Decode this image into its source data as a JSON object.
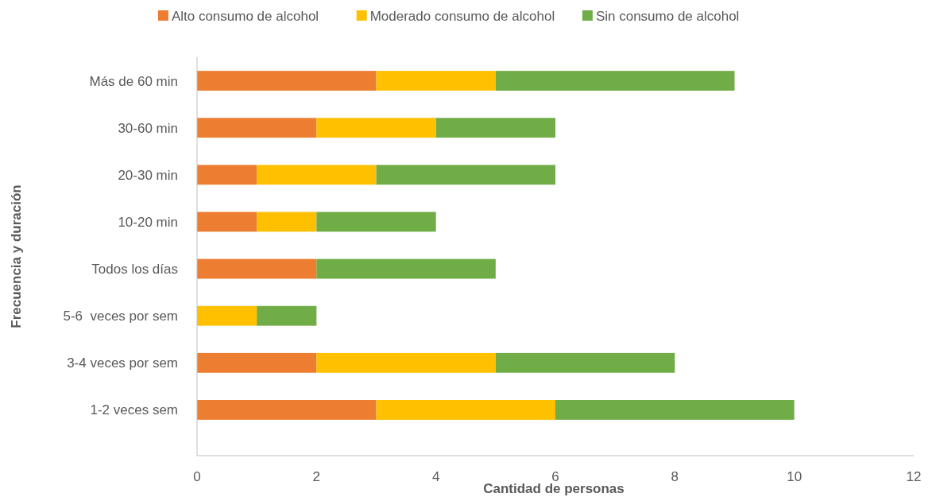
{
  "chart_data": {
    "type": "bar",
    "orientation": "horizontal",
    "stacked": true,
    "xlabel": "Cantidad de personas",
    "ylabel": "Frecuencia y duración",
    "categories": [
      "Más de 60 min",
      "30-60 min",
      "20-30 min",
      "10-20 min",
      "Todos los días",
      "5-6  veces por sem",
      "3-4 veces por sem",
      "1-2 veces sem"
    ],
    "series": [
      {
        "name": "Alto consumo de alcohol",
        "color": "#ed7d31",
        "values": [
          3,
          2,
          1,
          1,
          2,
          0,
          2,
          3
        ]
      },
      {
        "name": "Moderado consumo de alcohol",
        "color": "#ffc000",
        "values": [
          2,
          2,
          2,
          1,
          0,
          1,
          3,
          3
        ]
      },
      {
        "name": "Sin consumo de alcohol",
        "color": "#70ad47",
        "values": [
          4,
          2,
          3,
          2,
          3,
          1,
          3,
          4
        ]
      }
    ],
    "xlim": [
      0,
      12
    ],
    "xticks": [
      0,
      2,
      4,
      6,
      8,
      10,
      12
    ],
    "grid": false,
    "legend": "top"
  }
}
